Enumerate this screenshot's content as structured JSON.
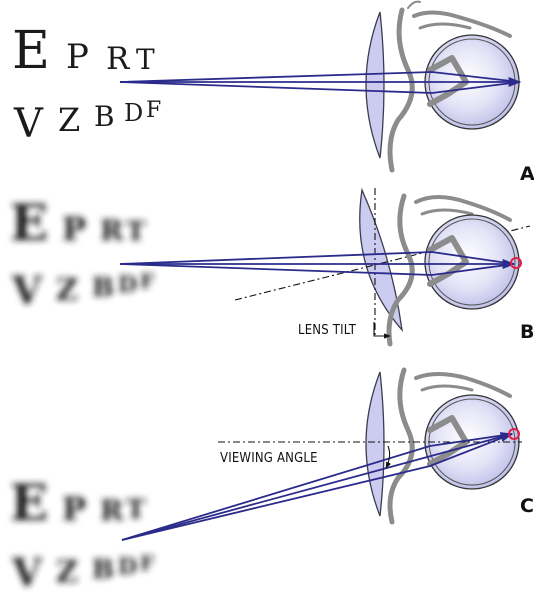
{
  "chart": {
    "row1": [
      "E",
      "P",
      "R",
      "T"
    ],
    "row2": [
      "V",
      "Z",
      "B",
      "D",
      "F"
    ]
  },
  "panels": [
    {
      "label": "A",
      "state": "sharp"
    },
    {
      "label": "B",
      "state": "blurred",
      "annotation": "LENS TILT"
    },
    {
      "label": "C",
      "state": "blurred",
      "annotation": "VIEWING ANGLE"
    }
  ],
  "colors": {
    "ray": "#2b2b8c",
    "lens": "#ccccf0",
    "eye": "#d8d8f4",
    "face": "#8c8c8c",
    "focus_marker": "#e0204a"
  }
}
